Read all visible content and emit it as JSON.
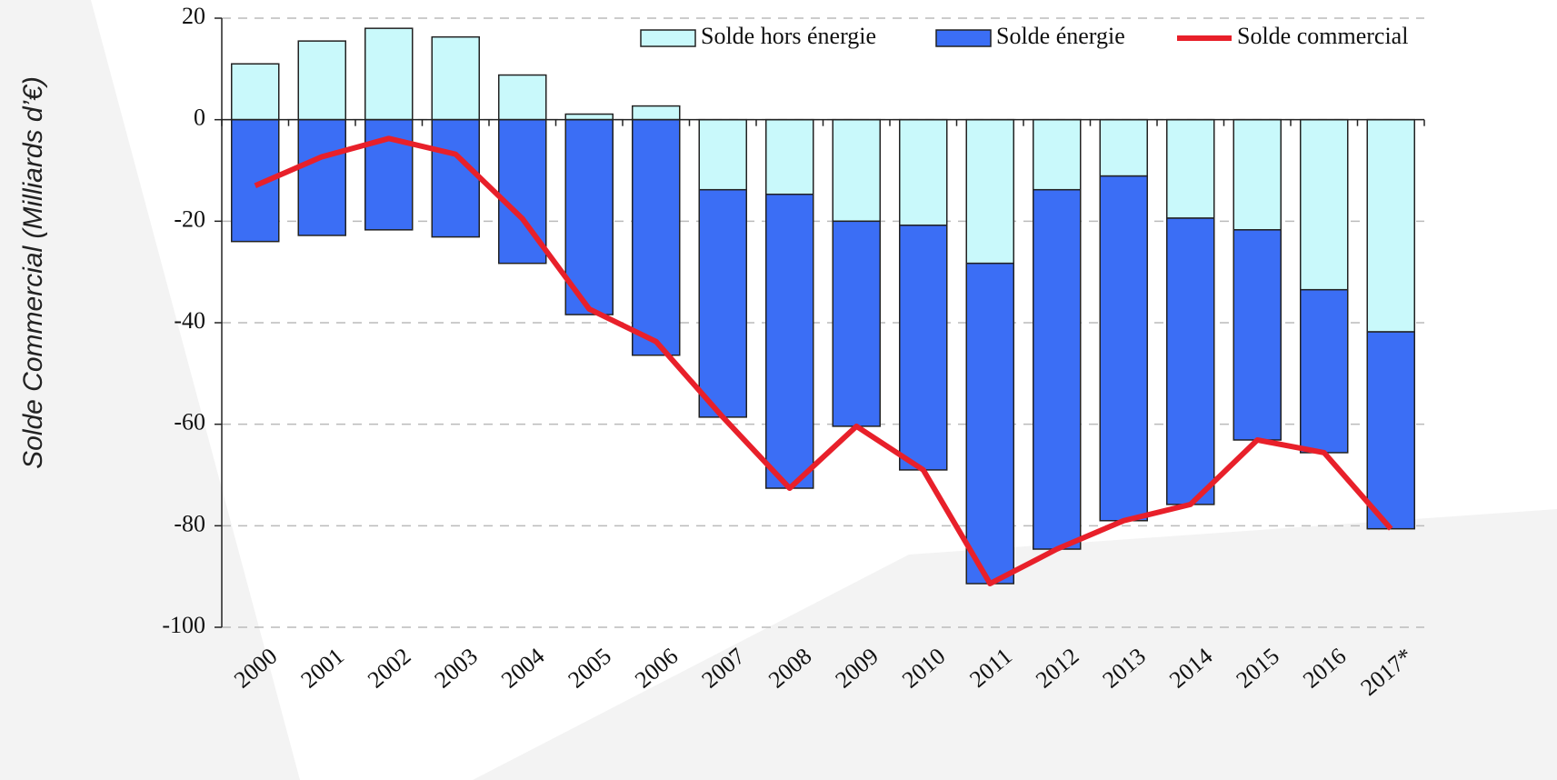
{
  "chart_data": {
    "type": "bar",
    "stacked": true,
    "y_label": "Solde Commercial (Milliards d’€)",
    "categories": [
      "2000",
      "2001",
      "2002",
      "2003",
      "2004",
      "2005",
      "2006",
      "2007",
      "2008",
      "2009",
      "2010",
      "2011",
      "2012",
      "2013",
      "2014",
      "2015",
      "2016",
      "2017*"
    ],
    "series": [
      {
        "name": "Solde hors énergie",
        "type": "bar",
        "color": "#c9f9fb",
        "values": [
          11,
          15.5,
          18,
          16.3,
          8.8,
          1.1,
          2.7,
          -13.8,
          -14.7,
          -20,
          -20.8,
          -28.3,
          -13.8,
          -11.1,
          -19.4,
          -21.7,
          -33.5,
          -41.8
        ]
      },
      {
        "name": "Solde énergie",
        "type": "bar",
        "color": "#3b6ef5",
        "values": [
          -24,
          -22.8,
          -21.7,
          -23.1,
          -28.3,
          -38.4,
          -46.4,
          -44.8,
          -57.9,
          -40.4,
          -48.2,
          -63.1,
          -70.8,
          -67.9,
          -56.4,
          -41.4,
          -32.1,
          -38.8
        ]
      },
      {
        "name": "Solde commercial",
        "type": "line",
        "color": "#e8202a",
        "values": [
          -13,
          -7.3,
          -3.7,
          -6.8,
          -19.5,
          -37.3,
          -43.7,
          -58.6,
          -72.6,
          -60.4,
          -69,
          -91.4,
          -84.6,
          -79,
          -75.8,
          -63.1,
          -65.6,
          -80.6
        ]
      }
    ],
    "ylim": [
      -100,
      20
    ],
    "yticks": [
      -100,
      -80,
      -60,
      -40,
      -20,
      0,
      20
    ],
    "grid": true,
    "legend": "top-right"
  }
}
